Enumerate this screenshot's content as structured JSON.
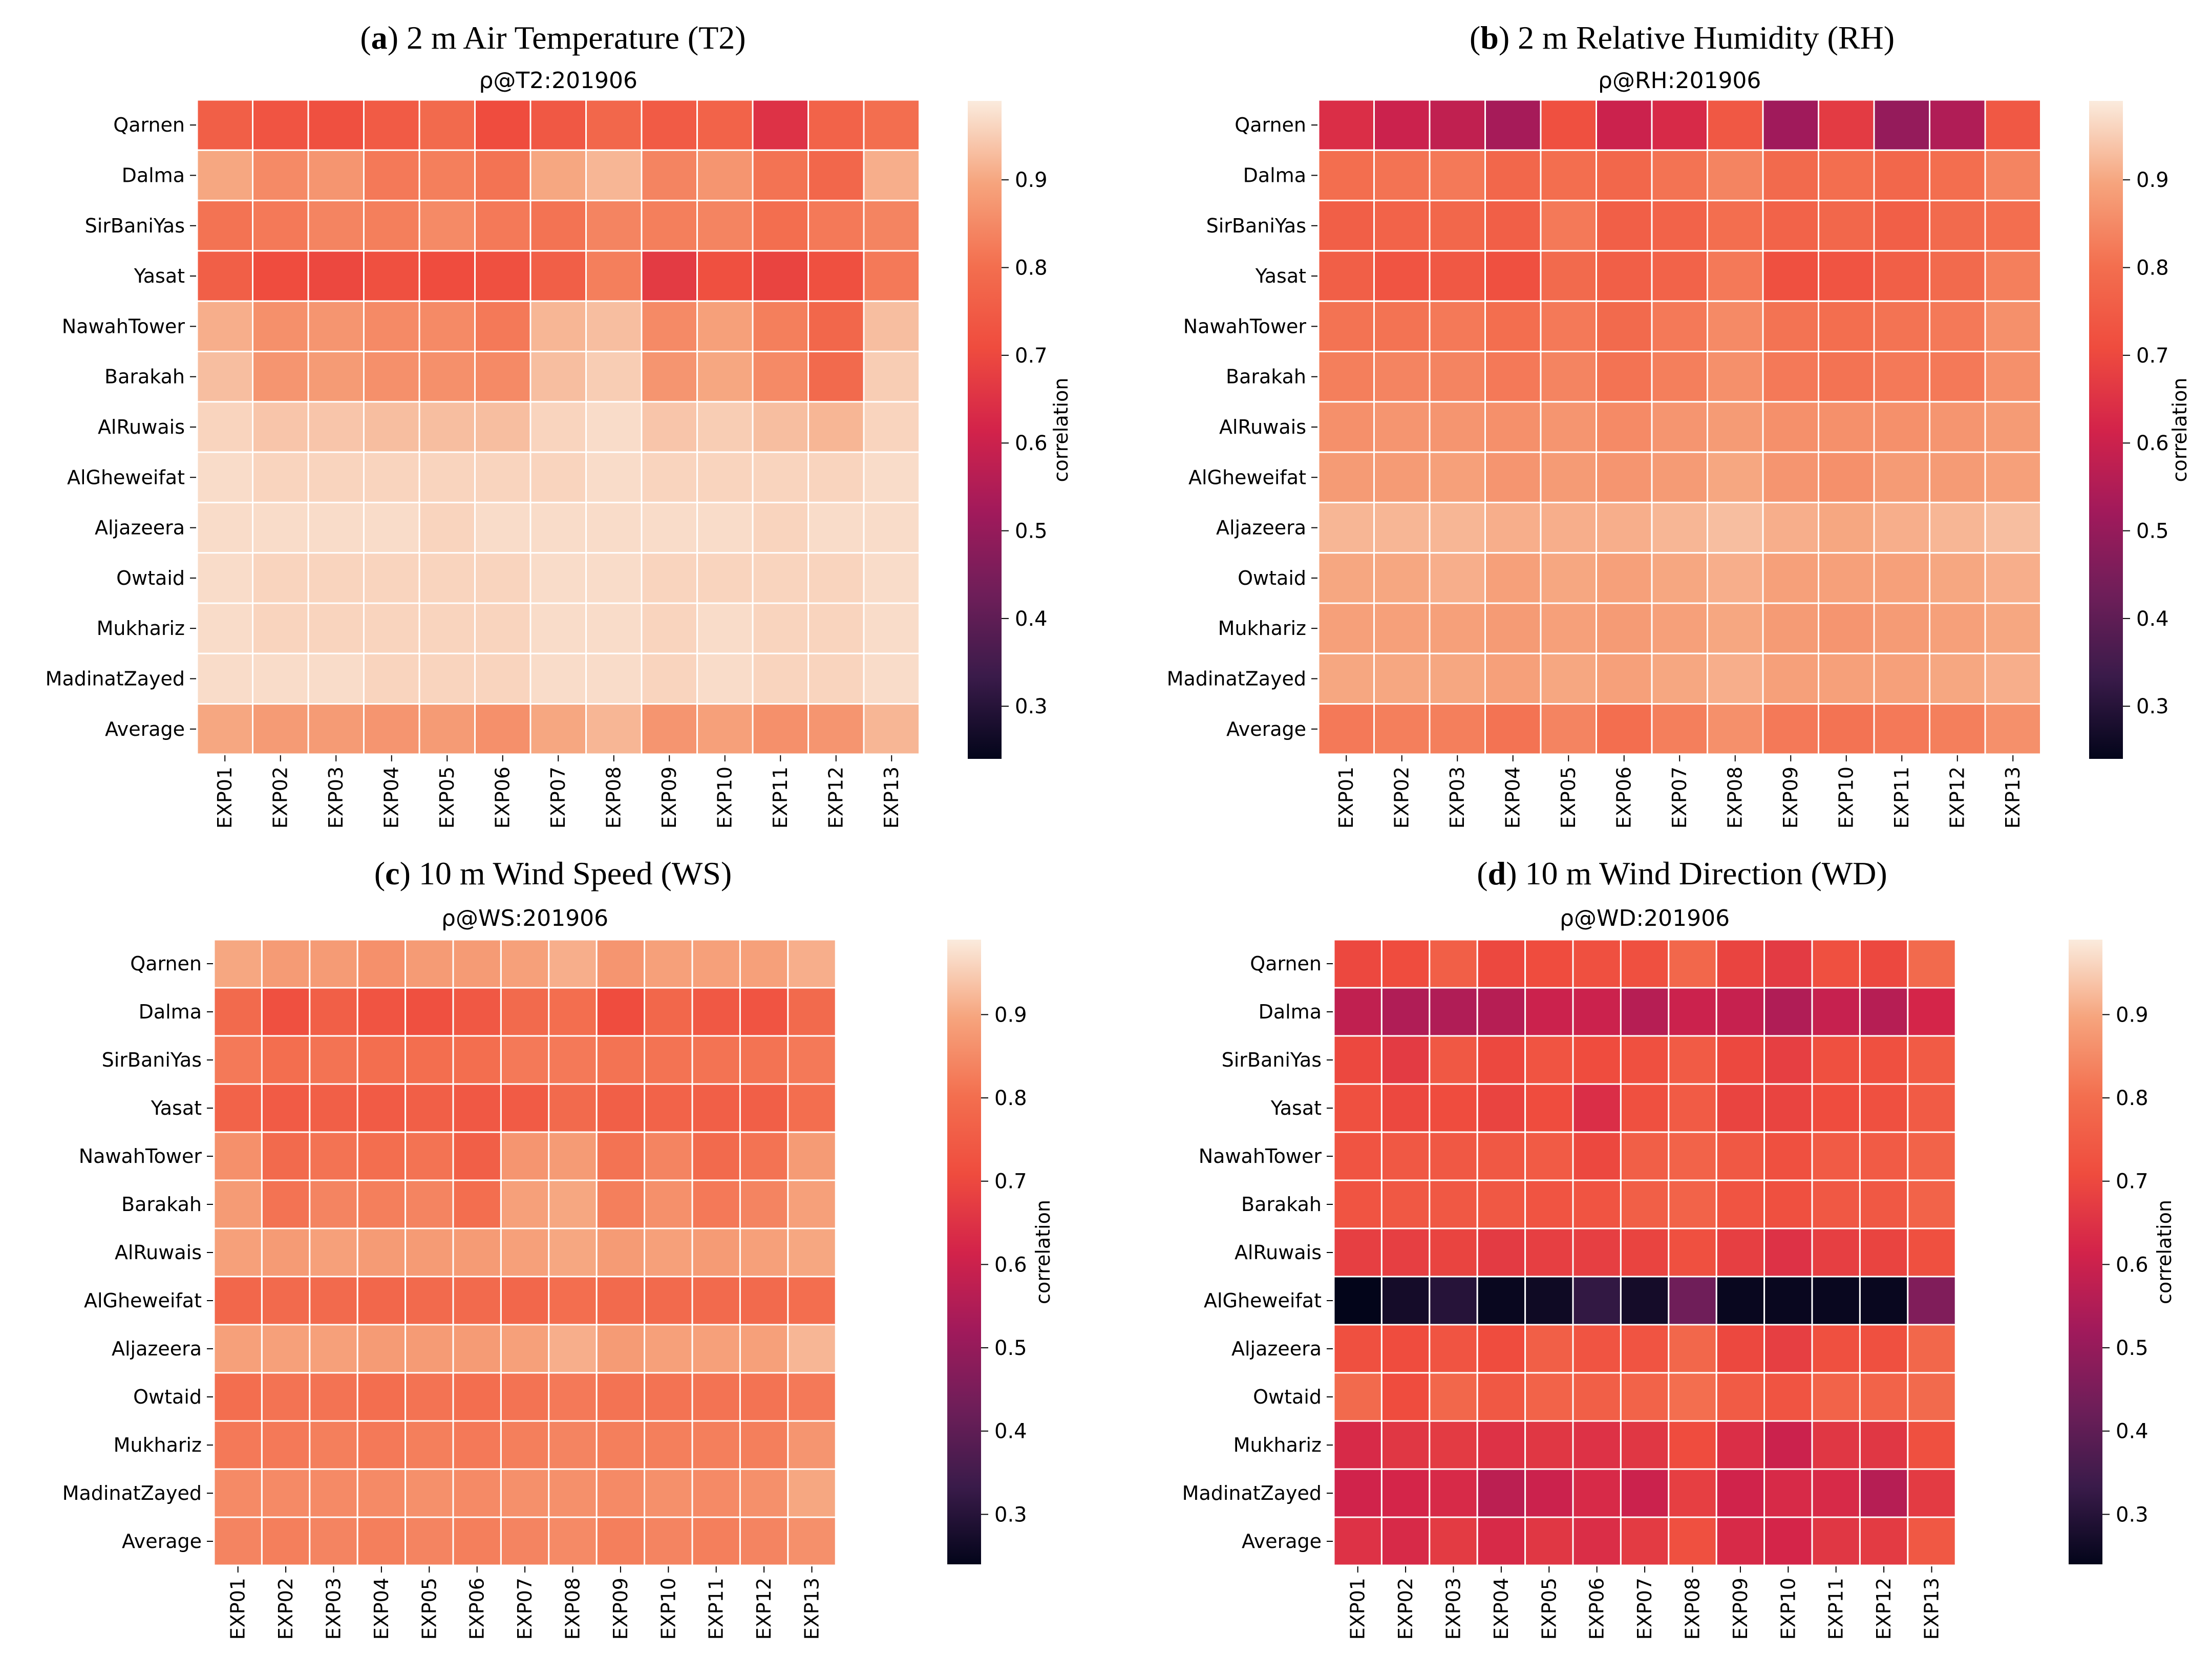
{
  "chart_data": [
    {
      "type": "heatmap",
      "panel_letter": "a",
      "title_text": "2 m Air Temperature (T2)",
      "subtitle": "ρ@T2:201906",
      "colorbar_label": "correlation",
      "colorbar_ticks": [
        "0.3",
        "0.4",
        "0.5",
        "0.6",
        "0.7",
        "0.8",
        "0.9"
      ],
      "colorbar_range": [
        0.24,
        0.99
      ],
      "rows": [
        "Qarnen",
        "Dalma",
        "SirBaniYas",
        "Yasat",
        "NawahTower",
        "Barakah",
        "AlRuwais",
        "AlGheweifat",
        "Aljazeera",
        "Owtaid",
        "Mukhariz",
        "MadinatZayed",
        "Average"
      ],
      "columns": [
        "EXP01",
        "EXP02",
        "EXP03",
        "EXP04",
        "EXP05",
        "EXP06",
        "EXP07",
        "EXP08",
        "EXP09",
        "EXP10",
        "EXP11",
        "EXP12",
        "EXP13"
      ],
      "values": [
        [
          0.76,
          0.73,
          0.72,
          0.75,
          0.79,
          0.71,
          0.74,
          0.78,
          0.75,
          0.77,
          0.65,
          0.77,
          0.8
        ],
        [
          0.9,
          0.85,
          0.87,
          0.82,
          0.83,
          0.81,
          0.9,
          0.92,
          0.84,
          0.87,
          0.81,
          0.78,
          0.91
        ],
        [
          0.81,
          0.82,
          0.84,
          0.83,
          0.85,
          0.82,
          0.81,
          0.84,
          0.83,
          0.84,
          0.8,
          0.82,
          0.84
        ],
        [
          0.76,
          0.71,
          0.7,
          0.72,
          0.71,
          0.72,
          0.76,
          0.83,
          0.67,
          0.72,
          0.69,
          0.72,
          0.82
        ],
        [
          0.91,
          0.86,
          0.87,
          0.85,
          0.85,
          0.82,
          0.92,
          0.93,
          0.85,
          0.89,
          0.83,
          0.78,
          0.93
        ],
        [
          0.93,
          0.87,
          0.88,
          0.86,
          0.86,
          0.85,
          0.93,
          0.95,
          0.87,
          0.9,
          0.85,
          0.79,
          0.95
        ],
        [
          0.96,
          0.94,
          0.94,
          0.93,
          0.93,
          0.93,
          0.96,
          0.97,
          0.94,
          0.95,
          0.93,
          0.92,
          0.96
        ],
        [
          0.97,
          0.96,
          0.96,
          0.96,
          0.96,
          0.96,
          0.96,
          0.97,
          0.96,
          0.96,
          0.96,
          0.96,
          0.97
        ],
        [
          0.97,
          0.97,
          0.97,
          0.97,
          0.96,
          0.97,
          0.97,
          0.97,
          0.97,
          0.97,
          0.96,
          0.97,
          0.97
        ],
        [
          0.97,
          0.96,
          0.96,
          0.96,
          0.96,
          0.96,
          0.97,
          0.97,
          0.96,
          0.96,
          0.96,
          0.96,
          0.97
        ],
        [
          0.97,
          0.96,
          0.96,
          0.96,
          0.96,
          0.96,
          0.97,
          0.97,
          0.96,
          0.97,
          0.96,
          0.96,
          0.97
        ],
        [
          0.97,
          0.97,
          0.97,
          0.96,
          0.96,
          0.96,
          0.97,
          0.97,
          0.96,
          0.97,
          0.96,
          0.96,
          0.97
        ],
        [
          0.9,
          0.88,
          0.88,
          0.87,
          0.88,
          0.86,
          0.9,
          0.92,
          0.87,
          0.89,
          0.86,
          0.87,
          0.92
        ]
      ]
    },
    {
      "type": "heatmap",
      "panel_letter": "b",
      "title_text": "2 m Relative Humidity (RH)",
      "subtitle": "ρ@RH:201906",
      "colorbar_label": "correlation",
      "colorbar_ticks": [
        "0.3",
        "0.4",
        "0.5",
        "0.6",
        "0.7",
        "0.8",
        "0.9"
      ],
      "colorbar_range": [
        0.24,
        0.99
      ],
      "rows": [
        "Qarnen",
        "Dalma",
        "SirBaniYas",
        "Yasat",
        "NawahTower",
        "Barakah",
        "AlRuwais",
        "AlGheweifat",
        "Aljazeera",
        "Owtaid",
        "Mukhariz",
        "MadinatZayed",
        "Average"
      ],
      "columns": [
        "EXP01",
        "EXP02",
        "EXP03",
        "EXP04",
        "EXP05",
        "EXP06",
        "EXP07",
        "EXP08",
        "EXP09",
        "EXP10",
        "EXP11",
        "EXP12",
        "EXP13"
      ],
      "values": [
        [
          0.64,
          0.6,
          0.58,
          0.53,
          0.72,
          0.6,
          0.63,
          0.74,
          0.52,
          0.67,
          0.5,
          0.55,
          0.74
        ],
        [
          0.8,
          0.81,
          0.82,
          0.78,
          0.8,
          0.78,
          0.81,
          0.84,
          0.79,
          0.8,
          0.78,
          0.8,
          0.84
        ],
        [
          0.76,
          0.77,
          0.78,
          0.76,
          0.82,
          0.76,
          0.77,
          0.8,
          0.77,
          0.78,
          0.76,
          0.79,
          0.8
        ],
        [
          0.76,
          0.73,
          0.74,
          0.72,
          0.79,
          0.76,
          0.77,
          0.82,
          0.72,
          0.73,
          0.76,
          0.79,
          0.83
        ],
        [
          0.81,
          0.81,
          0.82,
          0.8,
          0.82,
          0.79,
          0.82,
          0.85,
          0.81,
          0.8,
          0.81,
          0.82,
          0.86
        ],
        [
          0.83,
          0.84,
          0.84,
          0.82,
          0.84,
          0.81,
          0.83,
          0.86,
          0.82,
          0.81,
          0.82,
          0.82,
          0.86
        ],
        [
          0.86,
          0.87,
          0.87,
          0.86,
          0.87,
          0.85,
          0.87,
          0.88,
          0.86,
          0.86,
          0.86,
          0.87,
          0.88
        ],
        [
          0.88,
          0.88,
          0.89,
          0.87,
          0.88,
          0.87,
          0.88,
          0.9,
          0.87,
          0.86,
          0.88,
          0.88,
          0.89
        ],
        [
          0.92,
          0.92,
          0.92,
          0.91,
          0.91,
          0.91,
          0.92,
          0.93,
          0.91,
          0.9,
          0.91,
          0.92,
          0.93
        ],
        [
          0.9,
          0.9,
          0.91,
          0.89,
          0.9,
          0.89,
          0.9,
          0.91,
          0.89,
          0.89,
          0.89,
          0.9,
          0.91
        ],
        [
          0.89,
          0.89,
          0.89,
          0.88,
          0.89,
          0.88,
          0.89,
          0.9,
          0.88,
          0.87,
          0.88,
          0.89,
          0.9
        ],
        [
          0.9,
          0.9,
          0.9,
          0.89,
          0.9,
          0.89,
          0.9,
          0.91,
          0.89,
          0.89,
          0.89,
          0.9,
          0.91
        ],
        [
          0.82,
          0.83,
          0.83,
          0.81,
          0.84,
          0.8,
          0.83,
          0.86,
          0.82,
          0.81,
          0.82,
          0.83,
          0.86
        ]
      ]
    },
    {
      "type": "heatmap",
      "panel_letter": "c",
      "title_text": "10 m Wind Speed (WS)",
      "subtitle": "ρ@WS:201906",
      "colorbar_label": "correlation",
      "colorbar_ticks": [
        "0.3",
        "0.4",
        "0.5",
        "0.6",
        "0.7",
        "0.8",
        "0.9"
      ],
      "colorbar_range": [
        0.24,
        0.99
      ],
      "rows": [
        "Qarnen",
        "Dalma",
        "SirBaniYas",
        "Yasat",
        "NawahTower",
        "Barakah",
        "AlRuwais",
        "AlGheweifat",
        "Aljazeera",
        "Owtaid",
        "Mukhariz",
        "MadinatZayed",
        "Average"
      ],
      "columns": [
        "EXP01",
        "EXP02",
        "EXP03",
        "EXP04",
        "EXP05",
        "EXP06",
        "EXP07",
        "EXP08",
        "EXP09",
        "EXP10",
        "EXP11",
        "EXP12",
        "EXP13"
      ],
      "values": [
        [
          0.9,
          0.88,
          0.88,
          0.86,
          0.88,
          0.88,
          0.89,
          0.91,
          0.87,
          0.89,
          0.89,
          0.89,
          0.91
        ],
        [
          0.79,
          0.72,
          0.76,
          0.73,
          0.72,
          0.74,
          0.79,
          0.8,
          0.71,
          0.78,
          0.74,
          0.73,
          0.79
        ],
        [
          0.82,
          0.8,
          0.81,
          0.8,
          0.8,
          0.8,
          0.82,
          0.82,
          0.81,
          0.81,
          0.81,
          0.81,
          0.82
        ],
        [
          0.77,
          0.75,
          0.76,
          0.75,
          0.76,
          0.74,
          0.75,
          0.79,
          0.76,
          0.77,
          0.76,
          0.76,
          0.8
        ],
        [
          0.86,
          0.79,
          0.81,
          0.8,
          0.81,
          0.76,
          0.87,
          0.88,
          0.81,
          0.84,
          0.79,
          0.81,
          0.88
        ],
        [
          0.88,
          0.81,
          0.84,
          0.83,
          0.84,
          0.8,
          0.89,
          0.9,
          0.83,
          0.86,
          0.82,
          0.84,
          0.89
        ],
        [
          0.89,
          0.88,
          0.89,
          0.88,
          0.88,
          0.88,
          0.89,
          0.9,
          0.88,
          0.89,
          0.88,
          0.89,
          0.9
        ],
        [
          0.78,
          0.79,
          0.79,
          0.78,
          0.79,
          0.79,
          0.78,
          0.8,
          0.79,
          0.79,
          0.79,
          0.79,
          0.8
        ],
        [
          0.89,
          0.89,
          0.89,
          0.88,
          0.88,
          0.88,
          0.89,
          0.91,
          0.88,
          0.89,
          0.89,
          0.89,
          0.92
        ],
        [
          0.8,
          0.81,
          0.81,
          0.8,
          0.81,
          0.8,
          0.81,
          0.82,
          0.81,
          0.81,
          0.81,
          0.81,
          0.82
        ],
        [
          0.82,
          0.82,
          0.83,
          0.82,
          0.83,
          0.82,
          0.83,
          0.84,
          0.83,
          0.83,
          0.83,
          0.83,
          0.87
        ],
        [
          0.85,
          0.85,
          0.85,
          0.85,
          0.86,
          0.85,
          0.86,
          0.86,
          0.85,
          0.86,
          0.85,
          0.86,
          0.9
        ],
        [
          0.84,
          0.83,
          0.84,
          0.83,
          0.84,
          0.83,
          0.84,
          0.85,
          0.83,
          0.84,
          0.83,
          0.84,
          0.86
        ]
      ]
    },
    {
      "type": "heatmap",
      "panel_letter": "d",
      "title_text": "10 m Wind Direction (WD)",
      "subtitle": "ρ@WD:201906",
      "colorbar_label": "correlation",
      "colorbar_ticks": [
        "0.3",
        "0.4",
        "0.5",
        "0.6",
        "0.7",
        "0.8",
        "0.9"
      ],
      "colorbar_range": [
        0.24,
        0.99
      ],
      "rows": [
        "Qarnen",
        "Dalma",
        "SirBaniYas",
        "Yasat",
        "NawahTower",
        "Barakah",
        "AlRuwais",
        "AlGheweifat",
        "Aljazeera",
        "Owtaid",
        "Mukhariz",
        "MadinatZayed",
        "Average"
      ],
      "columns": [
        "EXP01",
        "EXP02",
        "EXP03",
        "EXP04",
        "EXP05",
        "EXP06",
        "EXP07",
        "EXP08",
        "EXP09",
        "EXP10",
        "EXP11",
        "EXP12",
        "EXP13"
      ],
      "values": [
        [
          0.7,
          0.71,
          0.76,
          0.7,
          0.71,
          0.72,
          0.72,
          0.78,
          0.69,
          0.67,
          0.72,
          0.7,
          0.79
        ],
        [
          0.58,
          0.55,
          0.55,
          0.56,
          0.6,
          0.6,
          0.56,
          0.6,
          0.59,
          0.55,
          0.59,
          0.56,
          0.62
        ],
        [
          0.7,
          0.67,
          0.74,
          0.7,
          0.73,
          0.71,
          0.72,
          0.75,
          0.7,
          0.68,
          0.72,
          0.72,
          0.75
        ],
        [
          0.72,
          0.7,
          0.71,
          0.69,
          0.71,
          0.64,
          0.72,
          0.75,
          0.69,
          0.69,
          0.71,
          0.72,
          0.75
        ],
        [
          0.73,
          0.74,
          0.74,
          0.74,
          0.75,
          0.7,
          0.76,
          0.77,
          0.74,
          0.72,
          0.75,
          0.75,
          0.77
        ],
        [
          0.73,
          0.74,
          0.74,
          0.74,
          0.73,
          0.73,
          0.76,
          0.77,
          0.73,
          0.72,
          0.74,
          0.74,
          0.77
        ],
        [
          0.68,
          0.68,
          0.69,
          0.67,
          0.68,
          0.68,
          0.69,
          0.72,
          0.68,
          0.65,
          0.68,
          0.69,
          0.72
        ],
        [
          0.24,
          0.27,
          0.3,
          0.25,
          0.26,
          0.32,
          0.27,
          0.43,
          0.25,
          0.25,
          0.25,
          0.25,
          0.46
        ],
        [
          0.72,
          0.71,
          0.73,
          0.71,
          0.76,
          0.73,
          0.73,
          0.78,
          0.7,
          0.68,
          0.72,
          0.72,
          0.78
        ],
        [
          0.79,
          0.71,
          0.78,
          0.74,
          0.77,
          0.76,
          0.77,
          0.8,
          0.75,
          0.73,
          0.77,
          0.77,
          0.79
        ],
        [
          0.63,
          0.66,
          0.67,
          0.65,
          0.66,
          0.65,
          0.66,
          0.71,
          0.64,
          0.6,
          0.66,
          0.66,
          0.72
        ],
        [
          0.61,
          0.62,
          0.63,
          0.57,
          0.6,
          0.63,
          0.6,
          0.68,
          0.61,
          0.63,
          0.63,
          0.56,
          0.67
        ],
        [
          0.65,
          0.63,
          0.67,
          0.63,
          0.66,
          0.64,
          0.67,
          0.72,
          0.63,
          0.62,
          0.66,
          0.67,
          0.74
        ]
      ]
    }
  ]
}
